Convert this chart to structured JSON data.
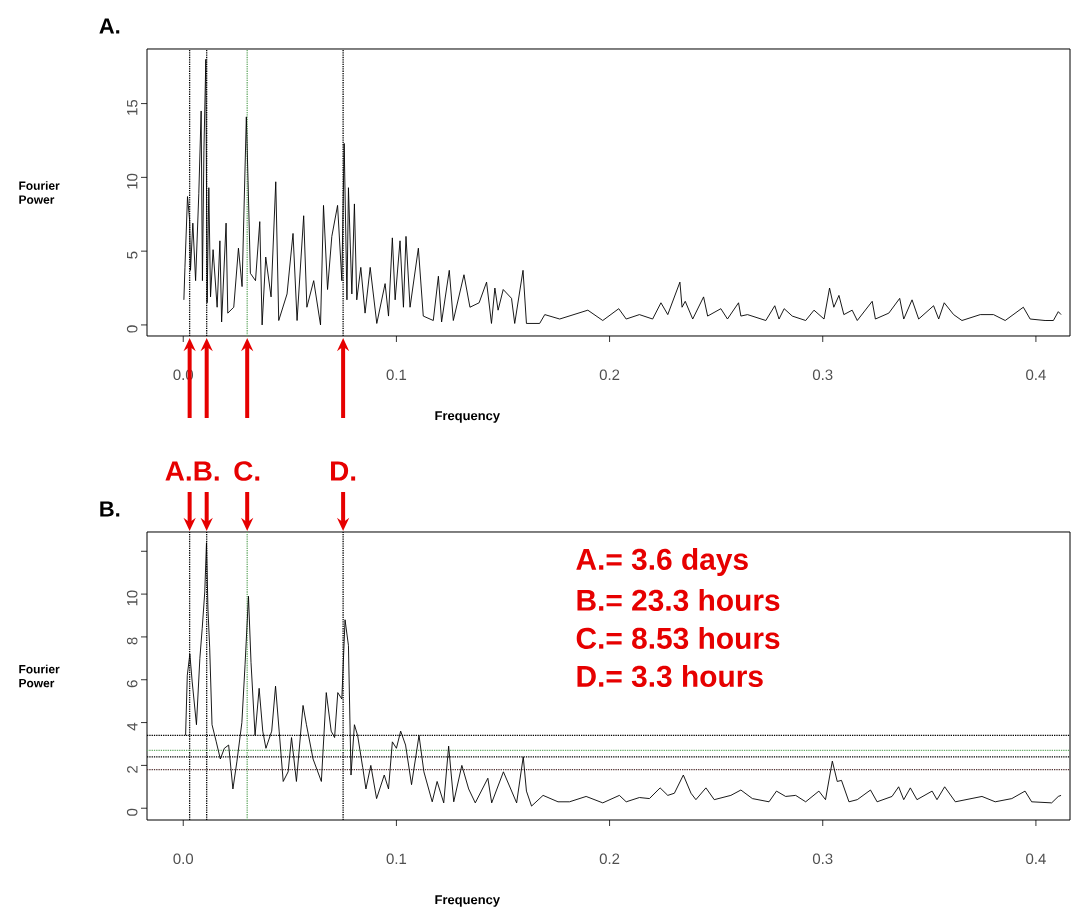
{
  "chart_data": [
    {
      "type": "line",
      "title": "A.",
      "xlabel": "Frequency",
      "ylabel": "Fourier Power",
      "color": "#000000",
      "x": [
        0.0003,
        0.0008,
        0.002,
        0.003,
        0.0034,
        0.0045,
        0.0058,
        0.0073,
        0.0084,
        0.009,
        0.0097,
        0.0106,
        0.0112,
        0.012,
        0.0128,
        0.014,
        0.0159,
        0.0172,
        0.018,
        0.0201,
        0.0209,
        0.0237,
        0.0259,
        0.0276,
        0.0296,
        0.0304,
        0.0315,
        0.0339,
        0.0359,
        0.037,
        0.0387,
        0.0412,
        0.0434,
        0.0448,
        0.0487,
        0.0515,
        0.0534,
        0.0565,
        0.058,
        0.0612,
        0.0644,
        0.0658,
        0.0677,
        0.0697,
        0.0724,
        0.0744,
        0.0755,
        0.0768,
        0.0775,
        0.0791,
        0.0803,
        0.0814,
        0.0833,
        0.0853,
        0.0877,
        0.0908,
        0.0947,
        0.0963,
        0.0981,
        0.0994,
        0.1017,
        0.1033,
        0.1045,
        0.1064,
        0.1103,
        0.1126,
        0.1173,
        0.1197,
        0.1212,
        0.1248,
        0.1267,
        0.1317,
        0.1345,
        0.1388,
        0.1423,
        0.1446,
        0.1462,
        0.1477,
        0.1501,
        0.154,
        0.1555,
        0.1594,
        0.161,
        0.1672,
        0.1696,
        0.1766,
        0.1898,
        0.1968,
        0.2043,
        0.2078,
        0.214,
        0.2202,
        0.2241,
        0.2273,
        0.233,
        0.234,
        0.2355,
        0.239,
        0.2441,
        0.246,
        0.2522,
        0.2553,
        0.2605,
        0.2616,
        0.2647,
        0.2733,
        0.2775,
        0.2795,
        0.2819,
        0.2857,
        0.292,
        0.2959,
        0.3006,
        0.3032,
        0.3052,
        0.3076,
        0.3099,
        0.3138,
        0.3162,
        0.3232,
        0.3247,
        0.331,
        0.3361,
        0.338,
        0.3419,
        0.345,
        0.352,
        0.3544,
        0.357,
        0.3614,
        0.3653,
        0.3739,
        0.3801,
        0.3856,
        0.3941,
        0.3973,
        0.4043,
        0.4082,
        0.4105,
        0.4118
      ],
      "values": [
        1.7,
        3.9,
        8.7,
        7.1,
        3.7,
        6.9,
        3.0,
        8.9,
        14.5,
        3.0,
        11.8,
        18.0,
        1.5,
        9.3,
        1.9,
        5.1,
        1.2,
        5.7,
        0.2,
        6.9,
        0.8,
        1.2,
        5.2,
        2.6,
        14.1,
        9.8,
        3.5,
        3.0,
        7.0,
        0.0,
        4.6,
        1.9,
        9.7,
        0.3,
        2.1,
        6.2,
        0.3,
        7.4,
        1.2,
        3.0,
        0.0,
        8.1,
        2.4,
        6.0,
        8.1,
        3.0,
        12.3,
        1.7,
        9.3,
        2.1,
        8.2,
        1.7,
        3.9,
        0.8,
        3.9,
        0.1,
        2.8,
        0.6,
        5.9,
        1.7,
        5.7,
        1.2,
        6.0,
        1.2,
        5.2,
        0.6,
        0.3,
        3.3,
        0.2,
        3.7,
        0.3,
        3.4,
        1.2,
        1.5,
        2.9,
        0.1,
        2.5,
        1.0,
        2.4,
        1.8,
        0.1,
        3.7,
        0.1,
        0.1,
        0.7,
        0.4,
        1.0,
        0.3,
        1.1,
        0.4,
        0.7,
        0.4,
        1.5,
        0.7,
        2.9,
        1.2,
        1.6,
        0.4,
        1.9,
        0.6,
        1.1,
        0.4,
        1.5,
        0.6,
        0.7,
        0.3,
        1.3,
        0.4,
        1.1,
        0.6,
        0.3,
        1.0,
        0.4,
        2.5,
        1.2,
        2.0,
        0.7,
        1.0,
        0.3,
        1.6,
        0.4,
        0.8,
        1.8,
        0.4,
        1.7,
        0.4,
        1.3,
        0.4,
        1.5,
        0.7,
        0.3,
        0.7,
        0.7,
        0.3,
        1.2,
        0.4,
        0.3,
        0.3,
        0.9,
        0.7
      ],
      "xlim": [
        -0.017,
        0.416
      ],
      "ylim": [
        -0.75,
        18.7
      ],
      "xticks": [
        {
          "value": 0,
          "label": "0.0"
        },
        0.1,
        0.2,
        0.3,
        0.4
      ],
      "yticks": [
        0,
        5,
        10,
        15
      ],
      "ref_lines": [
        {
          "axis": "x",
          "value": 0.003,
          "color": "#000000",
          "line_style": "dotted"
        },
        {
          "axis": "x",
          "value": 0.011,
          "color": "#000000",
          "line_style": "dotted"
        },
        {
          "axis": "x",
          "value": 0.03,
          "color": "#66aa66",
          "line_style": "dotted"
        },
        {
          "axis": "x",
          "value": 0.075,
          "color": "#000000",
          "line_style": "dotted"
        }
      ]
    },
    {
      "type": "line",
      "title": "B.",
      "xlabel": "Frequency",
      "ylabel": "Fourier Power",
      "color": "#000000",
      "x": [
        0.0011,
        0.0019,
        0.0031,
        0.0042,
        0.0062,
        0.0078,
        0.0089,
        0.0101,
        0.0109,
        0.0116,
        0.0124,
        0.0135,
        0.0155,
        0.0174,
        0.0193,
        0.0213,
        0.0233,
        0.0252,
        0.0275,
        0.029,
        0.0306,
        0.0318,
        0.0337,
        0.0356,
        0.0373,
        0.0388,
        0.0415,
        0.0433,
        0.045,
        0.0469,
        0.0492,
        0.0508,
        0.0531,
        0.0562,
        0.0578,
        0.0609,
        0.0648,
        0.0671,
        0.0694,
        0.071,
        0.0725,
        0.0744,
        0.0759,
        0.0775,
        0.0787,
        0.0803,
        0.0818,
        0.0842,
        0.0857,
        0.088,
        0.0907,
        0.0943,
        0.0963,
        0.0981,
        0.1,
        0.102,
        0.1043,
        0.1071,
        0.1106,
        0.1129,
        0.1168,
        0.1191,
        0.1222,
        0.1245,
        0.1269,
        0.1307,
        0.1339,
        0.137,
        0.1429,
        0.1447,
        0.1502,
        0.1564,
        0.1595,
        0.161,
        0.1634,
        0.1688,
        0.1758,
        0.1812,
        0.189,
        0.1968,
        0.2046,
        0.2078,
        0.214,
        0.2187,
        0.2237,
        0.2273,
        0.2304,
        0.2346,
        0.2382,
        0.2405,
        0.2452,
        0.2491,
        0.2569,
        0.2616,
        0.267,
        0.2748,
        0.2783,
        0.2826,
        0.2873,
        0.292,
        0.2982,
        0.3013,
        0.3045,
        0.3068,
        0.3088,
        0.3123,
        0.3162,
        0.3224,
        0.3255,
        0.3325,
        0.3356,
        0.338,
        0.3411,
        0.3442,
        0.3513,
        0.3536,
        0.3572,
        0.3622,
        0.3747,
        0.3809,
        0.3887,
        0.3949,
        0.398,
        0.4074,
        0.4105,
        0.4118
      ],
      "values": [
        3.4,
        6.2,
        7.2,
        5.9,
        3.9,
        7.0,
        8.4,
        10.1,
        12.4,
        9.3,
        7.5,
        3.9,
        3.1,
        2.3,
        2.8,
        2.95,
        0.9,
        2.2,
        4.0,
        6.7,
        9.9,
        6.8,
        3.4,
        5.6,
        3.6,
        2.8,
        3.6,
        5.7,
        3.6,
        1.25,
        1.7,
        3.3,
        1.25,
        4.8,
        3.9,
        2.3,
        1.25,
        5.4,
        3.6,
        3.3,
        5.4,
        5.1,
        8.8,
        7.6,
        1.55,
        3.9,
        3.4,
        1.9,
        0.9,
        2.0,
        0.45,
        1.55,
        0.9,
        3.1,
        2.8,
        3.6,
        2.95,
        1.1,
        3.4,
        1.7,
        0.3,
        1.25,
        0.25,
        2.9,
        0.3,
        2.0,
        0.9,
        0.25,
        1.4,
        0.25,
        1.7,
        0.25,
        2.4,
        0.8,
        0.1,
        0.6,
        0.3,
        0.3,
        0.55,
        0.25,
        0.6,
        0.3,
        0.5,
        0.45,
        0.95,
        0.6,
        0.7,
        1.55,
        0.7,
        0.4,
        0.95,
        0.4,
        0.6,
        0.85,
        0.45,
        0.3,
        0.8,
        0.55,
        0.6,
        0.3,
        0.8,
        0.4,
        2.2,
        1.25,
        1.3,
        0.3,
        0.4,
        0.85,
        0.3,
        0.55,
        1.0,
        0.4,
        0.95,
        0.4,
        0.8,
        0.4,
        1.0,
        0.3,
        0.55,
        0.3,
        0.45,
        0.8,
        0.3,
        0.25,
        0.55,
        0.6
      ],
      "xlim": [
        -0.017,
        0.416
      ],
      "ylim": [
        -0.55,
        12.9
      ],
      "xticks": [
        {
          "value": 0,
          "label": "0.0"
        },
        0.1,
        0.2,
        0.3,
        0.4
      ],
      "yticks": [
        0,
        2,
        4,
        6,
        8,
        10,
        {
          "value": 12,
          "label": null
        }
      ],
      "ref_lines": [
        {
          "axis": "x",
          "value": 0.003,
          "label": "A.",
          "color": "#000000",
          "line_style": "dotted"
        },
        {
          "axis": "x",
          "value": 0.011,
          "label": "B.",
          "color": "#000000",
          "line_style": "dotted"
        },
        {
          "axis": "x",
          "value": 0.03,
          "label": "C.",
          "color": "#66aa66",
          "line_style": "dotted"
        },
        {
          "axis": "x",
          "value": 0.075,
          "label": "D.",
          "color": "#000000",
          "line_style": "dotted"
        },
        {
          "axis": "y",
          "value": 3.4,
          "color": "#000000",
          "line_style": "dotted"
        },
        {
          "axis": "y",
          "value": 2.7,
          "color": "#66aa66",
          "line_style": "dotted"
        },
        {
          "axis": "y",
          "value": 2.4,
          "color": "#000000",
          "line_style": "dotted"
        },
        {
          "axis": "y",
          "value": 1.8,
          "color": "#553333",
          "line_style": "dotted"
        }
      ],
      "annotations": [
        "A.= 3.6 days",
        "B.= 23.3 hours",
        "C.= 8.53 hours",
        "D.= 3.3 hours"
      ]
    }
  ]
}
